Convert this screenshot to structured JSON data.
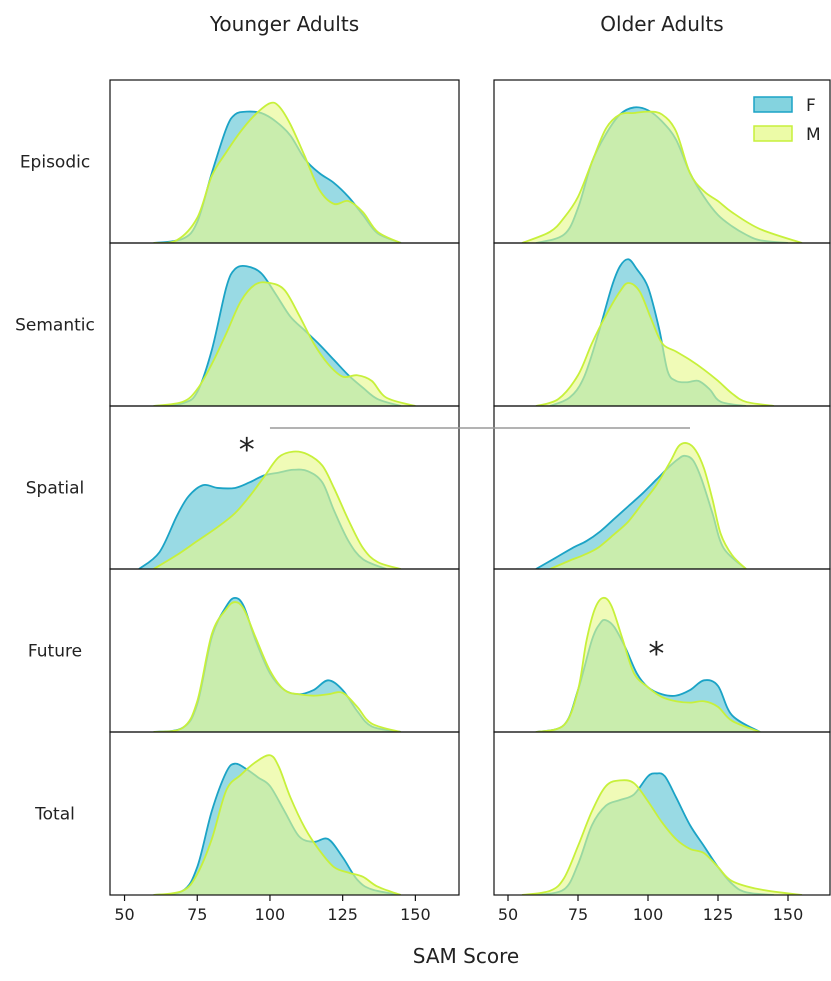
{
  "chart_data": {
    "type": "area",
    "subtype": "kde-density-grid",
    "columns": [
      "Younger Adults",
      "Older Adults"
    ],
    "rows": [
      "Episodic",
      "Semantic",
      "Spatial",
      "Future",
      "Total"
    ],
    "xlabel": "SAM Score",
    "xlim": [
      45,
      165
    ],
    "xticks": [
      50,
      75,
      100,
      125,
      150
    ],
    "legend": {
      "position": "top-right",
      "entries": [
        {
          "name": "F",
          "color": "#5bc4d4",
          "stroke": "#1ba3c6"
        },
        {
          "name": "M",
          "color": "#e6f98a",
          "stroke": "#c7f03b"
        }
      ]
    },
    "overlap_color": "#a5e489",
    "grid": false,
    "annotations": [
      {
        "text": "*",
        "column": "Younger Adults",
        "row": "Spatial",
        "x": 92,
        "y_frac": 0.8
      },
      {
        "text": "*",
        "column": "Older Adults",
        "row": "Future",
        "x": 103,
        "y_frac": 0.55
      },
      {
        "type": "hline",
        "rows": "Spatial",
        "x_from_left_column": 100,
        "x_to_right_column": 115
      }
    ],
    "panels": [
      {
        "column": "Younger Adults",
        "row": "Episodic",
        "series": [
          {
            "name": "F",
            "x": [
              60,
              70,
              75,
              80,
              85,
              88,
              92,
              97,
              102,
              107,
              112,
              117,
              122,
              127,
              132,
              137,
              145
            ],
            "y": [
              0,
              0.03,
              0.15,
              0.5,
              0.82,
              0.92,
              0.94,
              0.93,
              0.87,
              0.77,
              0.6,
              0.5,
              0.43,
              0.33,
              0.2,
              0.07,
              0
            ]
          },
          {
            "name": "M",
            "x": [
              60,
              68,
              75,
              80,
              85,
              90,
              95,
              100,
              103,
              107,
              112,
              117,
              122,
              127,
              132,
              137,
              145
            ],
            "y": [
              0,
              0.02,
              0.18,
              0.48,
              0.65,
              0.8,
              0.92,
              1.0,
              0.98,
              0.85,
              0.62,
              0.38,
              0.28,
              0.3,
              0.22,
              0.08,
              0
            ]
          }
        ]
      },
      {
        "column": "Younger Adults",
        "row": "Semantic",
        "series": [
          {
            "name": "F",
            "x": [
              60,
              70,
              75,
              80,
              85,
              88,
              92,
              97,
              102,
              107,
              112,
              117,
              122,
              127,
              132,
              137,
              145
            ],
            "y": [
              0,
              0.02,
              0.1,
              0.4,
              0.85,
              0.98,
              1.0,
              0.95,
              0.8,
              0.64,
              0.54,
              0.44,
              0.33,
              0.22,
              0.13,
              0.05,
              0
            ]
          },
          {
            "name": "M",
            "x": [
              60,
              70,
              75,
              80,
              85,
              90,
              95,
              100,
              105,
              110,
              115,
              120,
              125,
              130,
              135,
              140,
              150
            ],
            "y": [
              0,
              0.03,
              0.12,
              0.3,
              0.52,
              0.75,
              0.87,
              0.88,
              0.83,
              0.65,
              0.45,
              0.3,
              0.21,
              0.22,
              0.18,
              0.06,
              0
            ]
          }
        ]
      },
      {
        "column": "Younger Adults",
        "row": "Spatial",
        "series": [
          {
            "name": "F",
            "x": [
              55,
              62,
              68,
              72,
              77,
              82,
              88,
              93,
              98,
              103,
              108,
              113,
              118,
              122,
              127,
              132,
              140
            ],
            "y": [
              0,
              0.12,
              0.38,
              0.52,
              0.6,
              0.58,
              0.58,
              0.62,
              0.67,
              0.69,
              0.71,
              0.7,
              0.62,
              0.42,
              0.2,
              0.07,
              0
            ]
          },
          {
            "name": "M",
            "x": [
              60,
              68,
              75,
              82,
              88,
              93,
              98,
              103,
              108,
              113,
              118,
              122,
              127,
              132,
              137,
              145
            ],
            "y": [
              0,
              0.1,
              0.2,
              0.3,
              0.4,
              0.52,
              0.66,
              0.8,
              0.84,
              0.82,
              0.74,
              0.58,
              0.35,
              0.15,
              0.05,
              0
            ]
          }
        ]
      },
      {
        "column": "Younger Adults",
        "row": "Future",
        "series": [
          {
            "name": "F",
            "x": [
              60,
              70,
              75,
              80,
              85,
              88,
              91,
              95,
              100,
              105,
              110,
              115,
              120,
              125,
              130,
              135,
              145
            ],
            "y": [
              0,
              0.03,
              0.2,
              0.68,
              0.9,
              0.96,
              0.9,
              0.66,
              0.42,
              0.3,
              0.27,
              0.3,
              0.37,
              0.3,
              0.15,
              0.04,
              0
            ]
          },
          {
            "name": "M",
            "x": [
              60,
              70,
              75,
              80,
              85,
              88,
              91,
              95,
              100,
              105,
              110,
              115,
              120,
              125,
              130,
              135,
              145
            ],
            "y": [
              0,
              0.03,
              0.22,
              0.7,
              0.88,
              0.93,
              0.88,
              0.68,
              0.44,
              0.3,
              0.27,
              0.26,
              0.27,
              0.28,
              0.18,
              0.06,
              0
            ]
          }
        ]
      },
      {
        "column": "Younger Adults",
        "row": "Total",
        "series": [
          {
            "name": "F",
            "x": [
              60,
              70,
              75,
              80,
              85,
              88,
              92,
              96,
              100,
              105,
              110,
              115,
              120,
              125,
              130,
              135,
              145
            ],
            "y": [
              0,
              0.03,
              0.2,
              0.6,
              0.88,
              0.94,
              0.9,
              0.84,
              0.78,
              0.6,
              0.42,
              0.38,
              0.4,
              0.27,
              0.11,
              0.04,
              0
            ]
          },
          {
            "name": "M",
            "x": [
              60,
              70,
              75,
              80,
              85,
              90,
              95,
              100,
              103,
              107,
              112,
              117,
              122,
              127,
              132,
              137,
              145
            ],
            "y": [
              0,
              0.03,
              0.15,
              0.4,
              0.75,
              0.86,
              0.95,
              1.0,
              0.92,
              0.7,
              0.48,
              0.32,
              0.2,
              0.16,
              0.13,
              0.06,
              0
            ]
          }
        ]
      },
      {
        "column": "Older Adults",
        "row": "Episodic",
        "series": [
          {
            "name": "F",
            "x": [
              60,
              70,
              75,
              80,
              85,
              90,
              95,
              100,
              105,
              110,
              115,
              120,
              125,
              130,
              135,
              140,
              150
            ],
            "y": [
              0,
              0.06,
              0.25,
              0.58,
              0.78,
              0.92,
              0.97,
              0.95,
              0.87,
              0.74,
              0.5,
              0.33,
              0.2,
              0.12,
              0.06,
              0.02,
              0
            ]
          },
          {
            "name": "M",
            "x": [
              55,
              65,
              70,
              75,
              80,
              85,
              90,
              95,
              100,
              105,
              110,
              115,
              120,
              125,
              130,
              140,
              155
            ],
            "y": [
              0,
              0.08,
              0.18,
              0.33,
              0.58,
              0.82,
              0.92,
              0.93,
              0.94,
              0.92,
              0.8,
              0.5,
              0.37,
              0.3,
              0.22,
              0.1,
              0
            ]
          }
        ]
      },
      {
        "column": "Older Adults",
        "row": "Semantic",
        "series": [
          {
            "name": "F",
            "x": [
              65,
              72,
              77,
              82,
              87,
              90,
              93,
              96,
              100,
              104,
              107,
              110,
              114,
              118,
              122,
              126,
              135
            ],
            "y": [
              0,
              0.06,
              0.2,
              0.5,
              0.85,
              1.0,
              1.05,
              0.98,
              0.85,
              0.55,
              0.25,
              0.18,
              0.17,
              0.18,
              0.12,
              0.03,
              0
            ]
          },
          {
            "name": "M",
            "x": [
              60,
              68,
              75,
              80,
              85,
              90,
              93,
              97,
              101,
              105,
              110,
              115,
              120,
              125,
              130,
              135,
              145
            ],
            "y": [
              0,
              0.05,
              0.22,
              0.45,
              0.65,
              0.82,
              0.88,
              0.82,
              0.63,
              0.45,
              0.39,
              0.33,
              0.26,
              0.18,
              0.09,
              0.03,
              0
            ]
          }
        ]
      },
      {
        "column": "Older Adults",
        "row": "Spatial",
        "series": [
          {
            "name": "F",
            "x": [
              60,
              67,
              73,
              78,
              83,
              88,
              93,
              98,
              103,
              108,
              111,
              113,
              116,
              119,
              123,
              127,
              135
            ],
            "y": [
              0,
              0.08,
              0.15,
              0.2,
              0.27,
              0.36,
              0.45,
              0.54,
              0.64,
              0.74,
              0.79,
              0.81,
              0.78,
              0.65,
              0.4,
              0.15,
              0
            ]
          },
          {
            "name": "M",
            "x": [
              65,
              72,
              77,
              82,
              88,
              93,
              98,
              103,
              108,
              111,
              114,
              117,
              120,
              123,
              126,
              130,
              135
            ],
            "y": [
              0,
              0.06,
              0.1,
              0.15,
              0.25,
              0.34,
              0.47,
              0.6,
              0.77,
              0.88,
              0.9,
              0.85,
              0.72,
              0.5,
              0.25,
              0.1,
              0
            ]
          }
        ]
      },
      {
        "column": "Older Adults",
        "row": "Future",
        "series": [
          {
            "name": "F",
            "x": [
              60,
              70,
              75,
              80,
              83,
              85,
              88,
              92,
              96,
              100,
              105,
              110,
              115,
              120,
              125,
              130,
              140
            ],
            "y": [
              0,
              0.05,
              0.3,
              0.66,
              0.78,
              0.8,
              0.75,
              0.6,
              0.42,
              0.32,
              0.27,
              0.26,
              0.3,
              0.37,
              0.33,
              0.12,
              0
            ]
          },
          {
            "name": "M",
            "x": [
              60,
              70,
              75,
              78,
              81,
              84,
              87,
              91,
              95,
              100,
              105,
              110,
              115,
              120,
              125,
              130,
              140
            ],
            "y": [
              0,
              0.05,
              0.3,
              0.65,
              0.88,
              0.96,
              0.9,
              0.66,
              0.42,
              0.32,
              0.25,
              0.22,
              0.21,
              0.22,
              0.18,
              0.08,
              0
            ]
          }
        ]
      },
      {
        "column": "Older Adults",
        "row": "Total",
        "series": [
          {
            "name": "F",
            "x": [
              60,
              70,
              75,
              80,
              85,
              90,
              95,
              100,
              103,
              106,
              110,
              115,
              120,
              125,
              130,
              135,
              145
            ],
            "y": [
              0,
              0.04,
              0.22,
              0.5,
              0.64,
              0.68,
              0.72,
              0.85,
              0.87,
              0.85,
              0.7,
              0.5,
              0.35,
              0.2,
              0.08,
              0.02,
              0
            ]
          },
          {
            "name": "M",
            "x": [
              55,
              65,
              70,
              75,
              80,
              85,
              90,
              95,
              100,
              105,
              110,
              115,
              120,
              125,
              130,
              140,
              155
            ],
            "y": [
              0,
              0.03,
              0.12,
              0.35,
              0.6,
              0.78,
              0.82,
              0.8,
              0.67,
              0.52,
              0.4,
              0.33,
              0.3,
              0.2,
              0.1,
              0.04,
              0
            ]
          }
        ]
      }
    ]
  }
}
